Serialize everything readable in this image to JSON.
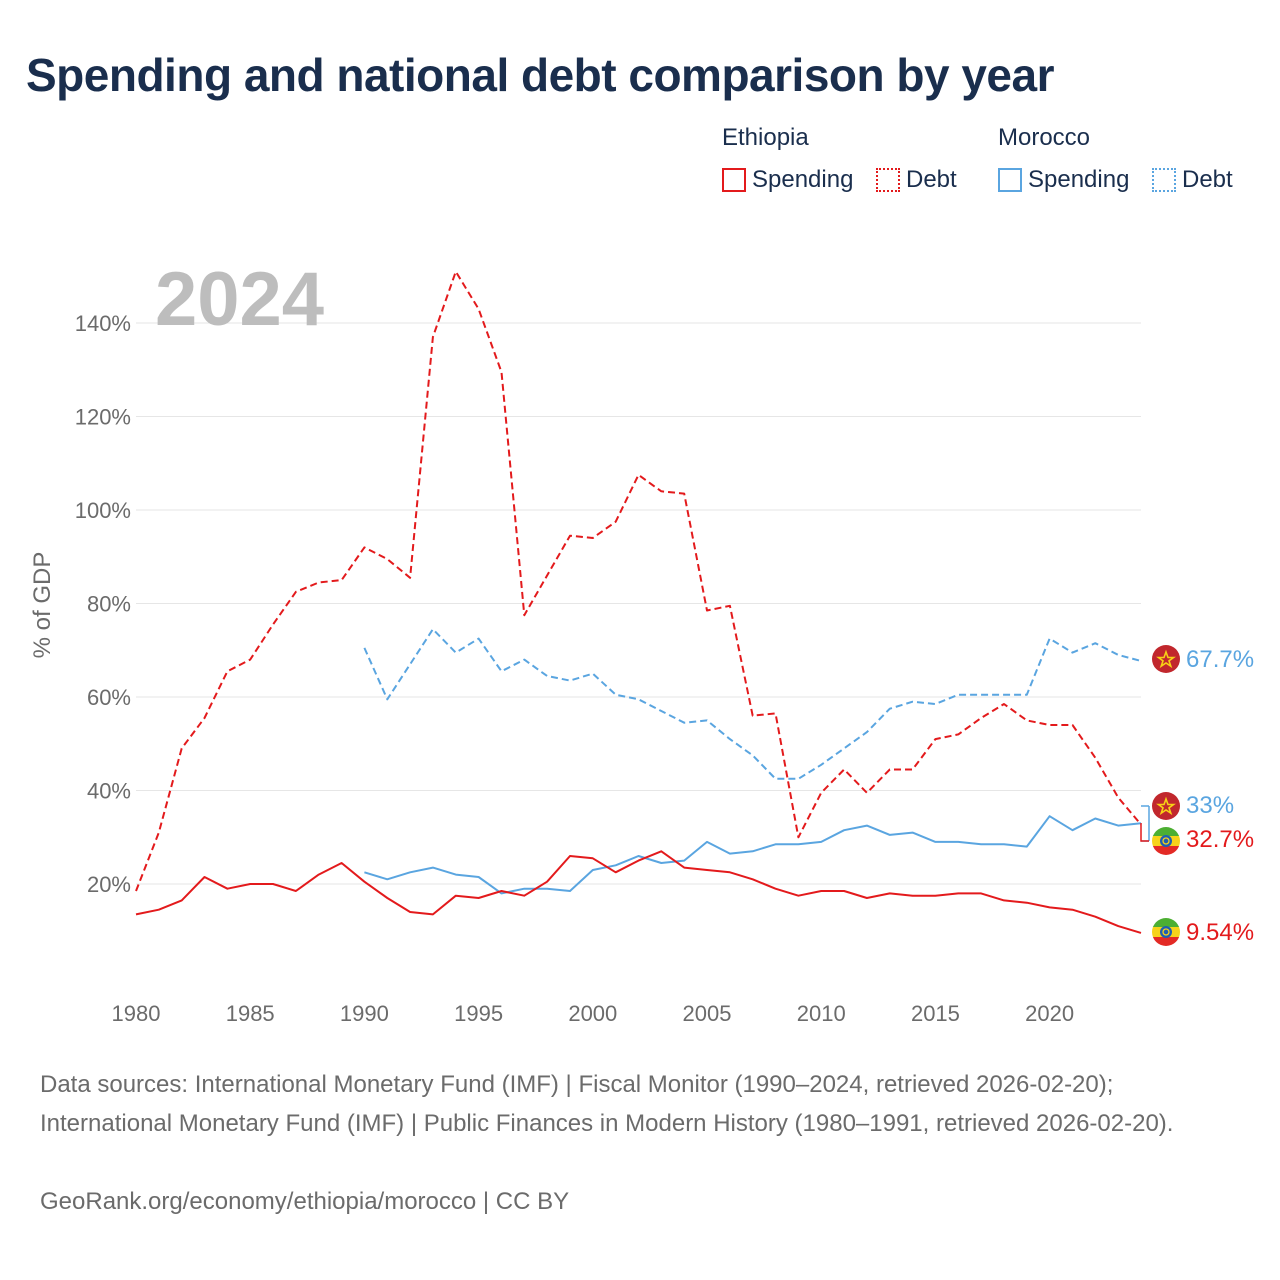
{
  "title": "Spending and national debt comparison by year",
  "legend": {
    "groups": [
      {
        "country": "Ethiopia",
        "spending_label": "Spending",
        "debt_label": "Debt"
      },
      {
        "country": "Morocco",
        "spending_label": "Spending",
        "debt_label": "Debt"
      }
    ]
  },
  "colors": {
    "ethiopia": "#e31a1c",
    "morocco": "#5aa5e0",
    "title": "#1a2e4d",
    "axis_text": "#6b6b6b",
    "year_watermark": "#bdbdbd",
    "grid": "#e6e6e6"
  },
  "footer": {
    "sources": "Data sources: International Monetary Fund (IMF) | Fiscal Monitor (1990–2024, retrieved 2026-02-20); International Monetary Fund (IMF) | Public Finances in Modern History (1980–1991, retrieved 2026-02-20).",
    "url": "GeoRank.org/economy/ethiopia/morocco | CC BY"
  },
  "chart_data": {
    "type": "line",
    "year_label": "2024",
    "ylabel": "% of GDP",
    "xlabel": "",
    "xlim": [
      1980,
      2024
    ],
    "ylim": [
      0,
      150
    ],
    "x_ticks": [
      1980,
      1985,
      1990,
      1995,
      2000,
      2005,
      2010,
      2015,
      2020
    ],
    "y_ticks": [
      20,
      40,
      60,
      80,
      100,
      120,
      140
    ],
    "y_tick_labels": [
      "20%",
      "40%",
      "60%",
      "80%",
      "100%",
      "120%",
      "140%"
    ],
    "series": [
      {
        "name": "Ethiopia Debt",
        "country": "Ethiopia",
        "metric": "Debt",
        "style": "dashed",
        "color": "#e31a1c",
        "start_year": 1980,
        "values": [
          18.5,
          31,
          49,
          55.5,
          65.5,
          68,
          75.5,
          82.5,
          84.5,
          85,
          92,
          89.5,
          85.5,
          137,
          151,
          143,
          129.5,
          77.5,
          86,
          94.5,
          94,
          97.5,
          107.5,
          104,
          103.5,
          78.5,
          79.5,
          56,
          56.5,
          30,
          39.5,
          44.5,
          39.5,
          44.5,
          44.5,
          51,
          52,
          55.5,
          58.5,
          55,
          54,
          54,
          47,
          38.5,
          32.7
        ],
        "end_label": "32.7%"
      },
      {
        "name": "Morocco Debt",
        "country": "Morocco",
        "metric": "Debt",
        "style": "dashed",
        "color": "#5aa5e0",
        "start_year": 1990,
        "values": [
          70.5,
          59.5,
          67,
          74.5,
          69.5,
          72.5,
          65.5,
          68,
          64.5,
          63.5,
          65,
          60.5,
          59.5,
          57,
          54.5,
          55,
          51,
          47.5,
          42.5,
          42.5,
          45.5,
          49,
          52.5,
          57.5,
          59,
          58.5,
          60.5,
          60.5,
          60.5,
          60.5,
          72.5,
          69.5,
          71.5,
          69,
          67.7
        ],
        "end_label": "67.7%"
      },
      {
        "name": "Morocco Spending",
        "country": "Morocco",
        "metric": "Spending",
        "style": "solid",
        "color": "#5aa5e0",
        "start_year": 1990,
        "values": [
          22.5,
          21,
          22.5,
          23.5,
          22,
          21.5,
          18,
          19,
          19,
          18.5,
          23,
          24,
          26,
          24.5,
          25,
          29,
          26.5,
          27,
          28.5,
          28.5,
          29,
          31.5,
          32.5,
          30.5,
          31,
          29,
          29,
          28.5,
          28.5,
          28,
          34.5,
          31.5,
          34,
          32.5,
          33
        ],
        "end_label": "33%"
      },
      {
        "name": "Ethiopia Spending",
        "country": "Ethiopia",
        "metric": "Spending",
        "style": "solid",
        "color": "#e31a1c",
        "start_year": 1980,
        "values": [
          13.5,
          14.5,
          16.5,
          21.5,
          19,
          20,
          20,
          18.5,
          22,
          24.5,
          20.5,
          17,
          14,
          13.5,
          17.5,
          17,
          18.5,
          17.5,
          20.5,
          26,
          25.5,
          22.5,
          25,
          27,
          23.5,
          23,
          22.5,
          21,
          19,
          17.5,
          18.5,
          18.5,
          17,
          18,
          17.5,
          17.5,
          18,
          18,
          16.5,
          16,
          15,
          14.5,
          13,
          11,
          9.54
        ],
        "end_label": "9.54%"
      }
    ]
  }
}
